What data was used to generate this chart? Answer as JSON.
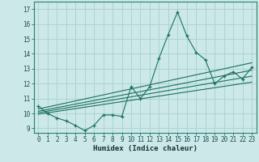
{
  "title": "",
  "xlabel": "Humidex (Indice chaleur)",
  "bg_color": "#cce8e8",
  "grid_color": "#aad4d4",
  "line_color": "#1a7060",
  "xlim": [
    -0.5,
    23.5
  ],
  "ylim": [
    8.7,
    17.5
  ],
  "xticks": [
    0,
    1,
    2,
    3,
    4,
    5,
    6,
    7,
    8,
    9,
    10,
    11,
    12,
    13,
    14,
    15,
    16,
    17,
    18,
    19,
    20,
    21,
    22,
    23
  ],
  "yticks": [
    9,
    10,
    11,
    12,
    13,
    14,
    15,
    16,
    17
  ],
  "main_x": [
    0,
    1,
    2,
    3,
    4,
    5,
    6,
    7,
    8,
    9,
    10,
    11,
    12,
    13,
    14,
    15,
    16,
    17,
    18,
    19,
    20,
    21,
    22,
    23
  ],
  "main_y": [
    10.5,
    10.0,
    9.7,
    9.5,
    9.2,
    8.85,
    9.2,
    9.9,
    9.9,
    9.8,
    11.8,
    11.0,
    11.8,
    13.7,
    15.3,
    16.8,
    15.2,
    14.1,
    13.6,
    12.0,
    12.5,
    12.8,
    12.3,
    13.1
  ],
  "trend_lines": [
    {
      "x": [
        0,
        23
      ],
      "y": [
        10.3,
        13.4
      ]
    },
    {
      "x": [
        0,
        23
      ],
      "y": [
        10.15,
        12.9
      ]
    },
    {
      "x": [
        0,
        23
      ],
      "y": [
        10.05,
        12.5
      ]
    },
    {
      "x": [
        0,
        23
      ],
      "y": [
        9.95,
        12.1
      ]
    }
  ]
}
